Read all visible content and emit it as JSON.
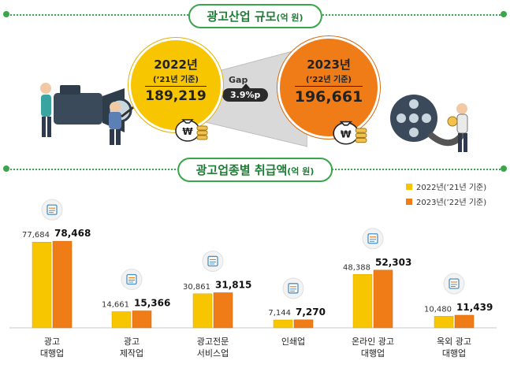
{
  "section1": {
    "title": "광고산업 규모",
    "unit": "(억 원)"
  },
  "section2": {
    "title": "광고업종별 취급액",
    "unit": "(억 원)"
  },
  "circle_2022": {
    "year": "2022년",
    "sub": "(’21년 기준)",
    "value": "189,219"
  },
  "circle_2023": {
    "year": "2023년",
    "sub": "(’22년 기준)",
    "value": "196,661"
  },
  "gap": {
    "label": "Gap",
    "value": "3.9%p"
  },
  "colors": {
    "y2022": "#f7c600",
    "y2023": "#f07c18",
    "green": "#3aa54a"
  },
  "chart_data": {
    "type": "bar",
    "categories": [
      "광고\n대행업",
      "광고\n제작업",
      "광고전문\n서비스업",
      "인쇄업",
      "온라인 광고\n대행업",
      "옥외 광고\n대행업"
    ],
    "series": [
      {
        "name": "2022년(’21년 기준)",
        "values": [
          77684,
          14661,
          30861,
          7144,
          48388,
          10480
        ],
        "labels": [
          "77,684",
          "14,661",
          "30,861",
          "7,144",
          "48,388",
          "10,480"
        ]
      },
      {
        "name": "2023년(’22년 기준)",
        "values": [
          78468,
          15366,
          31815,
          7270,
          52303,
          11439
        ],
        "labels": [
          "78,468",
          "15,366",
          "31,815",
          "7,270",
          "52,303",
          "11,439"
        ]
      }
    ],
    "ylim": [
      0,
      80000
    ],
    "legend": "top-right",
    "icons": [
      "document-icon",
      "megaphone-icon",
      "monitor-icon",
      "printer-icon",
      "browser-icon",
      "billboard-icon"
    ]
  }
}
